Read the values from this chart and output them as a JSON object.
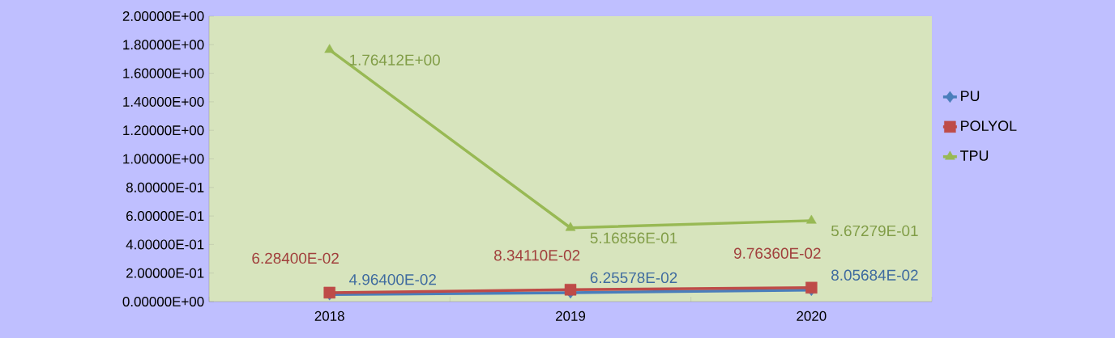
{
  "chart_data": {
    "type": "line",
    "categories": [
      "2018",
      "2019",
      "2020"
    ],
    "series": [
      {
        "name": "PU",
        "color": "#4a7ebb",
        "marker": "diamond",
        "values": [
          0.04964,
          0.0625578,
          0.0805684
        ],
        "value_labels": [
          "4.96400E-02",
          "6.25578E-02",
          "8.05684E-02"
        ]
      },
      {
        "name": "POLYOL",
        "color": "#be4b48",
        "marker": "square",
        "values": [
          0.06284,
          0.083411,
          0.097636
        ],
        "value_labels": [
          "6.28400E-02",
          "8.34110E-02",
          "9.76360E-02"
        ]
      },
      {
        "name": "TPU",
        "color": "#98b954",
        "marker": "triangle",
        "values": [
          1.76412,
          0.516856,
          0.567279
        ],
        "value_labels": [
          "1.76412E+00",
          "5.16856E-01",
          "5.67279E-01"
        ]
      }
    ],
    "ylim": [
      0,
      2
    ],
    "yticks": [
      {
        "value": 0,
        "label": "0.00000E+00"
      },
      {
        "value": 0.2,
        "label": "2.00000E-01"
      },
      {
        "value": 0.4,
        "label": "4.00000E-01"
      },
      {
        "value": 0.6,
        "label": "6.00000E-01"
      },
      {
        "value": 0.8,
        "label": "8.00000E-01"
      },
      {
        "value": 1.0,
        "label": "1.00000E+00"
      },
      {
        "value": 1.2,
        "label": "1.20000E+00"
      },
      {
        "value": 1.4,
        "label": "1.40000E+00"
      },
      {
        "value": 1.6,
        "label": "1.60000E+00"
      },
      {
        "value": 1.8,
        "label": "1.80000E+00"
      },
      {
        "value": 2.0,
        "label": "2.00000E+00"
      }
    ],
    "legend": "right"
  }
}
